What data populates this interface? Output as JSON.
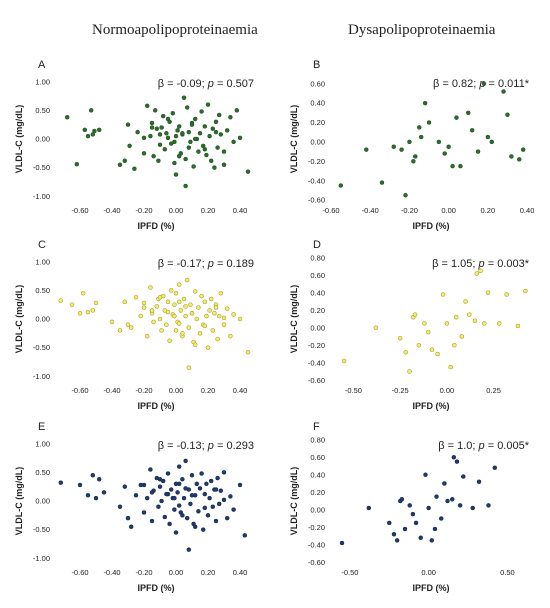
{
  "headers": {
    "left": "Normoapolipoproteinaemia",
    "right": "Dysapolipoproteinaemia"
  },
  "chart_data": [
    {
      "type": "scatter",
      "panel": "A",
      "color": "#2e6b2e",
      "marker_edge": "#1f4f1f",
      "xlabel": "IPFD (%)",
      "ylabel": "VLDL-C (mg/dL)",
      "xlim": [
        -0.75,
        0.5
      ],
      "ylim": [
        -1.1,
        1.1
      ],
      "xticks": [
        -0.6,
        -0.4,
        -0.2,
        0.0,
        0.2,
        0.4
      ],
      "xtick_labels": [
        "-0.60",
        "-0.40",
        "-0.20",
        "0.00",
        "0.20",
        "0.40"
      ],
      "yticks": [
        -1.0,
        -0.5,
        0.0,
        0.5,
        1.0
      ],
      "ytick_labels": [
        "-1.00",
        "-0.50",
        "0.00",
        "0.50",
        "1.00"
      ],
      "stats": {
        "beta": "β = -0.09; ",
        "p": "p",
        "pval": " = 0.507"
      },
      "x": [
        -0.68,
        -0.62,
        -0.57,
        -0.55,
        -0.53,
        -0.52,
        -0.51,
        -0.48,
        -0.35,
        -0.32,
        -0.3,
        -0.29,
        -0.26,
        -0.24,
        -0.2,
        -0.18,
        -0.16,
        -0.15,
        -0.14,
        -0.13,
        -0.12,
        -0.11,
        -0.1,
        -0.09,
        -0.08,
        -0.07,
        -0.06,
        -0.05,
        -0.04,
        -0.03,
        -0.02,
        -0.01,
        0.0,
        0.0,
        0.01,
        0.02,
        0.03,
        0.04,
        0.05,
        0.06,
        0.07,
        0.08,
        0.09,
        0.1,
        0.11,
        0.12,
        0.13,
        0.14,
        0.15,
        0.16,
        0.17,
        0.18,
        0.19,
        0.2,
        0.21,
        0.22,
        0.23,
        0.24,
        0.25,
        0.26,
        0.27,
        0.28,
        0.3,
        0.32,
        0.34,
        0.36,
        0.38,
        0.4,
        0.45,
        -0.1,
        -0.05,
        0.02,
        0.06,
        0.12,
        -0.2,
        0.08,
        0.25,
        -0.01,
        0.18,
        -0.15,
        0.3,
        0.04,
        0.1
      ],
      "y": [
        0.38,
        -0.44,
        0.16,
        0.05,
        0.5,
        0.08,
        0.14,
        0.16,
        -0.45,
        -0.38,
        0.25,
        -0.12,
        -0.52,
        0.12,
        -0.25,
        0.58,
        0.05,
        0.28,
        -0.3,
        0.5,
        0.18,
        -0.38,
        0.08,
        0.2,
        0.4,
        -0.18,
        0.1,
        0.02,
        0.3,
        -0.08,
        0.45,
        -0.42,
        0.05,
        -0.62,
        0.15,
        0.22,
        -0.25,
        0.08,
        0.72,
        -0.35,
        0.55,
        0.12,
        -0.05,
        0.28,
        -0.48,
        0.35,
        0.0,
        -0.22,
        0.1,
        0.48,
        -0.12,
        0.22,
        -0.28,
        0.6,
        0.05,
        -0.38,
        0.18,
        -0.5,
        0.3,
        -0.15,
        0.42,
        0.08,
        -0.22,
        0.15,
        0.38,
        -0.05,
        0.5,
        0.02,
        -0.57,
        -0.1,
        0.35,
        -0.3,
        -0.82,
        0.0,
        0.02,
        -0.15,
        0.12,
        -0.05,
        -0.18,
        0.2,
        -0.45,
        0.1,
        0.25
      ]
    },
    {
      "type": "scatter",
      "panel": "B",
      "color": "#2e6b2e",
      "marker_edge": "#1f4f1f",
      "xlabel": "IPFD (%)",
      "ylabel": "VLDL-C (mg/dL)",
      "xlim": [
        -0.6,
        0.42
      ],
      "ylim": [
        -0.62,
        0.68
      ],
      "xticks": [
        -0.6,
        -0.4,
        -0.2,
        0.0,
        0.2,
        0.4
      ],
      "xtick_labels": [
        "-0.60",
        "-0.40",
        "-0.20",
        "0.00",
        "0.20",
        "0.40"
      ],
      "yticks": [
        -0.6,
        -0.4,
        -0.2,
        0.0,
        0.2,
        0.4,
        0.6
      ],
      "ytick_labels": [
        "-0.60",
        "-0.40",
        "-0.20",
        "0.00",
        "0.20",
        "0.40",
        "0.60"
      ],
      "stats": {
        "beta": "β = 0.82; ",
        "p": "p",
        "pval": " = 0.011*"
      },
      "x": [
        -0.55,
        -0.42,
        -0.34,
        -0.28,
        -0.24,
        -0.22,
        -0.2,
        -0.18,
        -0.17,
        -0.15,
        -0.14,
        -0.12,
        -0.1,
        -0.05,
        -0.02,
        0.0,
        0.02,
        0.04,
        0.06,
        0.1,
        0.12,
        0.15,
        0.18,
        0.2,
        0.22,
        0.28,
        0.3,
        0.32,
        0.36,
        0.38
      ],
      "y": [
        -0.45,
        -0.08,
        -0.42,
        -0.05,
        -0.08,
        -0.55,
        0.0,
        -0.2,
        -0.15,
        0.15,
        0.05,
        0.4,
        0.2,
        0.0,
        -0.12,
        -0.05,
        -0.25,
        0.25,
        -0.25,
        0.3,
        0.12,
        -0.1,
        0.6,
        0.05,
        0.0,
        0.52,
        0.28,
        -0.15,
        -0.18,
        -0.08
      ]
    },
    {
      "type": "scatter",
      "panel": "C",
      "color": "#f3ec6a",
      "marker_edge": "#9a8f1e",
      "xlabel": "IPFD (%)",
      "ylabel": "VLDL-C (mg/dL)",
      "xlim": [
        -0.75,
        0.5
      ],
      "ylim": [
        -1.1,
        1.1
      ],
      "xticks": [
        -0.6,
        -0.4,
        -0.2,
        0.0,
        0.2,
        0.4
      ],
      "xtick_labels": [
        "-0.60",
        "-0.40",
        "-0.20",
        "0.00",
        "0.20",
        "0.40"
      ],
      "yticks": [
        -1.0,
        -0.5,
        0.0,
        0.5,
        1.0
      ],
      "ytick_labels": [
        "-1.00",
        "-0.50",
        "0.00",
        "0.50",
        "1.00"
      ],
      "stats": {
        "beta": "β = -0.17; ",
        "p": "p",
        "pval": " = 0.189"
      },
      "x": [
        -0.72,
        -0.65,
        -0.6,
        -0.58,
        -0.55,
        -0.52,
        -0.5,
        -0.4,
        -0.35,
        -0.32,
        -0.3,
        -0.28,
        -0.25,
        -0.22,
        -0.2,
        -0.18,
        -0.16,
        -0.15,
        -0.14,
        -0.12,
        -0.11,
        -0.1,
        -0.09,
        -0.08,
        -0.07,
        -0.06,
        -0.05,
        -0.04,
        -0.03,
        -0.02,
        -0.01,
        0.0,
        0.0,
        0.01,
        0.02,
        0.03,
        0.04,
        0.05,
        0.06,
        0.07,
        0.08,
        0.09,
        0.1,
        0.11,
        0.12,
        0.13,
        0.14,
        0.15,
        0.16,
        0.17,
        0.18,
        0.19,
        0.2,
        0.21,
        0.22,
        0.23,
        0.24,
        0.25,
        0.26,
        0.27,
        0.28,
        0.3,
        0.32,
        0.34,
        0.36,
        0.4,
        0.45,
        -0.1,
        -0.05,
        0.02,
        0.06,
        0.12,
        -0.2,
        0.08,
        0.25,
        -0.01,
        0.18,
        -0.15,
        0.3,
        0.04,
        0.1,
        0.02
      ],
      "y": [
        0.32,
        0.25,
        0.1,
        0.45,
        0.12,
        0.15,
        0.28,
        -0.05,
        -0.2,
        0.3,
        -0.1,
        -0.15,
        0.38,
        0.05,
        0.2,
        -0.3,
        0.55,
        0.1,
        -0.05,
        0.22,
        0.35,
        0.0,
        -0.2,
        0.4,
        0.15,
        -0.1,
        0.3,
        -0.38,
        0.5,
        0.08,
        0.25,
        -0.2,
        0.45,
        -0.05,
        0.6,
        0.15,
        -0.3,
        0.35,
        0.05,
        0.68,
        -0.15,
        0.25,
        0.1,
        -0.4,
        0.48,
        0.0,
        0.2,
        -0.25,
        0.4,
        -0.1,
        0.3,
        0.05,
        -0.5,
        0.15,
        0.35,
        -0.2,
        0.1,
        0.25,
        -0.35,
        0.05,
        0.45,
        -0.1,
        0.18,
        -0.3,
        0.08,
        0.0,
        -0.58,
        0.38,
        0.12,
        -0.08,
        0.22,
        -0.45,
        0.28,
        -0.85,
        0.2,
        0.05,
        -0.12,
        0.15,
        0.02,
        -0.25,
        0.1,
        0.3
      ]
    },
    {
      "type": "scatter",
      "panel": "D",
      "color": "#f3ec6a",
      "marker_edge": "#9a8f1e",
      "xlabel": "IPFD (%)",
      "ylabel": "VLDL-C (mg/dL)",
      "xlim": [
        -0.62,
        0.45
      ],
      "ylim": [
        -0.62,
        0.82
      ],
      "xticks": [
        -0.5,
        -0.25,
        0.0,
        0.25
      ],
      "xtick_labels": [
        "-0.50",
        "-0.25",
        "0.00",
        "0.25"
      ],
      "yticks": [
        -0.6,
        -0.4,
        -0.2,
        0.0,
        0.2,
        0.4,
        0.6,
        0.8
      ],
      "ytick_labels": [
        "-0.60",
        "-0.40",
        "-0.20",
        "0.00",
        "0.20",
        "0.40",
        "0.60",
        "0.80"
      ],
      "stats": {
        "beta": "β = 1.05; ",
        "p": "p",
        "pval": " = 0.003*"
      },
      "x": [
        -0.55,
        -0.38,
        -0.25,
        -0.22,
        -0.2,
        -0.18,
        -0.17,
        -0.15,
        -0.12,
        -0.1,
        -0.08,
        -0.05,
        -0.02,
        0.0,
        0.02,
        0.04,
        0.05,
        0.08,
        0.1,
        0.12,
        0.15,
        0.16,
        0.18,
        0.2,
        0.22,
        0.28,
        0.32,
        0.38,
        0.42
      ],
      "y": [
        -0.38,
        0.0,
        -0.12,
        -0.28,
        -0.5,
        0.12,
        0.15,
        -0.2,
        0.05,
        -0.05,
        -0.25,
        -0.3,
        0.38,
        0.05,
        -0.45,
        -0.2,
        0.12,
        -0.1,
        0.3,
        0.15,
        0.08,
        0.62,
        0.65,
        0.05,
        0.4,
        0.05,
        0.38,
        0.02,
        0.42
      ]
    },
    {
      "type": "scatter",
      "panel": "E",
      "color": "#1f3a6b",
      "marker_edge": "#14284d",
      "xlabel": "IPFD (%)",
      "ylabel": "VLDL-C (mg/dL)",
      "xlim": [
        -0.75,
        0.5
      ],
      "ylim": [
        -1.1,
        1.1
      ],
      "xticks": [
        -0.6,
        -0.4,
        -0.2,
        0.0,
        0.2,
        0.4
      ],
      "xtick_labels": [
        "-0.60",
        "-0.40",
        "-0.20",
        "0.00",
        "0.20",
        "0.40"
      ],
      "yticks": [
        -1.0,
        -0.5,
        0.0,
        0.5,
        1.0
      ],
      "ytick_labels": [
        "-1.00",
        "-0.50",
        "0.00",
        "0.50",
        "1.00"
      ],
      "stats": {
        "beta": "β = -0.13; ",
        "p": "p",
        "pval": " = 0.293"
      },
      "x": [
        -0.72,
        -0.6,
        -0.55,
        -0.52,
        -0.5,
        -0.48,
        -0.45,
        -0.35,
        -0.32,
        -0.3,
        -0.28,
        -0.25,
        -0.22,
        -0.2,
        -0.18,
        -0.16,
        -0.15,
        -0.14,
        -0.12,
        -0.11,
        -0.1,
        -0.09,
        -0.08,
        -0.07,
        -0.06,
        -0.05,
        -0.04,
        -0.03,
        -0.02,
        -0.01,
        0.0,
        0.0,
        0.01,
        0.02,
        0.03,
        0.04,
        0.05,
        0.06,
        0.07,
        0.08,
        0.09,
        0.1,
        0.11,
        0.12,
        0.13,
        0.14,
        0.15,
        0.16,
        0.17,
        0.18,
        0.19,
        0.2,
        0.21,
        0.22,
        0.23,
        0.24,
        0.25,
        0.26,
        0.27,
        0.28,
        0.3,
        0.32,
        0.34,
        0.36,
        0.4,
        0.43,
        -0.1,
        -0.05,
        0.02,
        0.06,
        0.12,
        -0.2,
        0.08,
        0.25,
        -0.01,
        0.18,
        -0.15,
        0.3,
        0.04,
        0.1,
        0.02
      ],
      "y": [
        0.32,
        0.28,
        0.1,
        0.45,
        0.05,
        0.38,
        0.15,
        -0.1,
        0.25,
        -0.3,
        -0.45,
        0.1,
        0.28,
        -0.2,
        0.05,
        0.55,
        -0.35,
        0.18,
        0.4,
        -0.1,
        0.25,
        0.0,
        0.35,
        -0.28,
        0.12,
        0.48,
        -0.4,
        0.2,
        0.05,
        -0.15,
        0.3,
        -0.55,
        0.15,
        0.6,
        -0.2,
        0.38,
        0.05,
        0.7,
        -0.3,
        0.2,
        -0.05,
        0.45,
        -0.4,
        0.1,
        0.3,
        -0.18,
        0.22,
        0.48,
        -0.5,
        0.12,
        0.3,
        -0.25,
        0.05,
        0.35,
        -0.1,
        0.2,
        -0.35,
        0.4,
        -0.05,
        0.18,
        0.5,
        -0.3,
        0.08,
        -0.15,
        0.28,
        -0.6,
        0.38,
        0.12,
        -0.08,
        0.22,
        -0.45,
        0.28,
        -0.85,
        0.2,
        0.05,
        -0.12,
        0.15,
        0.02,
        -0.25,
        0.1,
        0.3
      ]
    },
    {
      "type": "scatter",
      "panel": "F",
      "color": "#1f3a6b",
      "marker_edge": "#14284d",
      "xlabel": "IPFD (%)",
      "ylabel": "VLDL-C (mg/dL)",
      "xlim": [
        -0.62,
        0.65
      ],
      "ylim": [
        -0.62,
        0.82
      ],
      "xticks": [
        -0.5,
        0.0,
        0.5
      ],
      "xtick_labels": [
        "-0.50",
        "0.00",
        "0.50"
      ],
      "yticks": [
        -0.6,
        -0.4,
        -0.2,
        0.0,
        0.2,
        0.4,
        0.6,
        0.8
      ],
      "ytick_labels": [
        "-0.60",
        "-0.40",
        "-0.20",
        "0.00",
        "0.20",
        "0.40",
        "0.60",
        "0.80"
      ],
      "stats": {
        "beta": "β = 1.0; ",
        "p": "p",
        "pval": " = 0.005*"
      },
      "x": [
        -0.55,
        -0.38,
        -0.25,
        -0.22,
        -0.2,
        -0.18,
        -0.17,
        -0.15,
        -0.12,
        -0.1,
        -0.08,
        -0.05,
        -0.02,
        0.0,
        0.02,
        0.04,
        0.05,
        0.08,
        0.1,
        0.12,
        0.15,
        0.16,
        0.18,
        0.2,
        0.22,
        0.28,
        0.32,
        0.38,
        0.42
      ],
      "y": [
        -0.38,
        0.02,
        -0.15,
        -0.28,
        -0.35,
        0.1,
        0.12,
        -0.22,
        0.05,
        -0.05,
        -0.15,
        -0.32,
        0.4,
        0.02,
        -0.35,
        -0.22,
        0.15,
        -0.1,
        0.3,
        0.1,
        0.12,
        0.6,
        0.55,
        0.05,
        0.38,
        0.02,
        0.32,
        0.05,
        0.48
      ]
    }
  ]
}
